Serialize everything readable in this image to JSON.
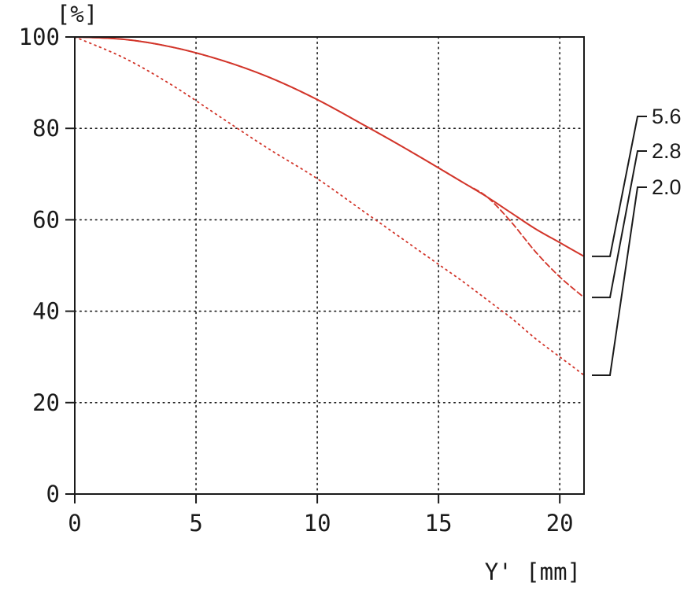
{
  "chart_data": {
    "type": "line",
    "ylabel": "[%]",
    "xlabel": "Y' [mm]",
    "xlim": [
      0,
      21
    ],
    "ylim": [
      0,
      100
    ],
    "x_ticks": [
      "0",
      "5",
      "10",
      "15",
      "20"
    ],
    "y_ticks": [
      "0",
      "20",
      "40",
      "60",
      "80",
      "100"
    ],
    "grid": true,
    "colors": {
      "series": "#d2352a",
      "axis": "#1a1a1a",
      "grid": "#1a1a1a"
    },
    "x": [
      0,
      2,
      4,
      6,
      8,
      10,
      12,
      14,
      16,
      17,
      18,
      19,
      20,
      21
    ],
    "series": [
      {
        "name": "5.6",
        "style": "solid",
        "values": [
          100,
          99.5,
          97.8,
          95,
          91.2,
          86.3,
          80.5,
          74.5,
          68.2,
          65,
          61.5,
          58,
          55,
          52
        ]
      },
      {
        "name": "2.8",
        "style": "dashed",
        "values": [
          100,
          99.5,
          97.8,
          95,
          91.2,
          86.3,
          80.5,
          74.5,
          68.2,
          65,
          59.5,
          53,
          47.5,
          43
        ]
      },
      {
        "name": "2.0",
        "style": "dotted",
        "values": [
          100,
          95.5,
          89.5,
          82.5,
          75.5,
          69,
          61.5,
          54,
          46.5,
          42.5,
          38.5,
          34,
          30,
          26
        ]
      }
    ],
    "legend": {
      "placement": "right",
      "order": [
        "5.6",
        "2.8",
        "2.0"
      ]
    }
  }
}
